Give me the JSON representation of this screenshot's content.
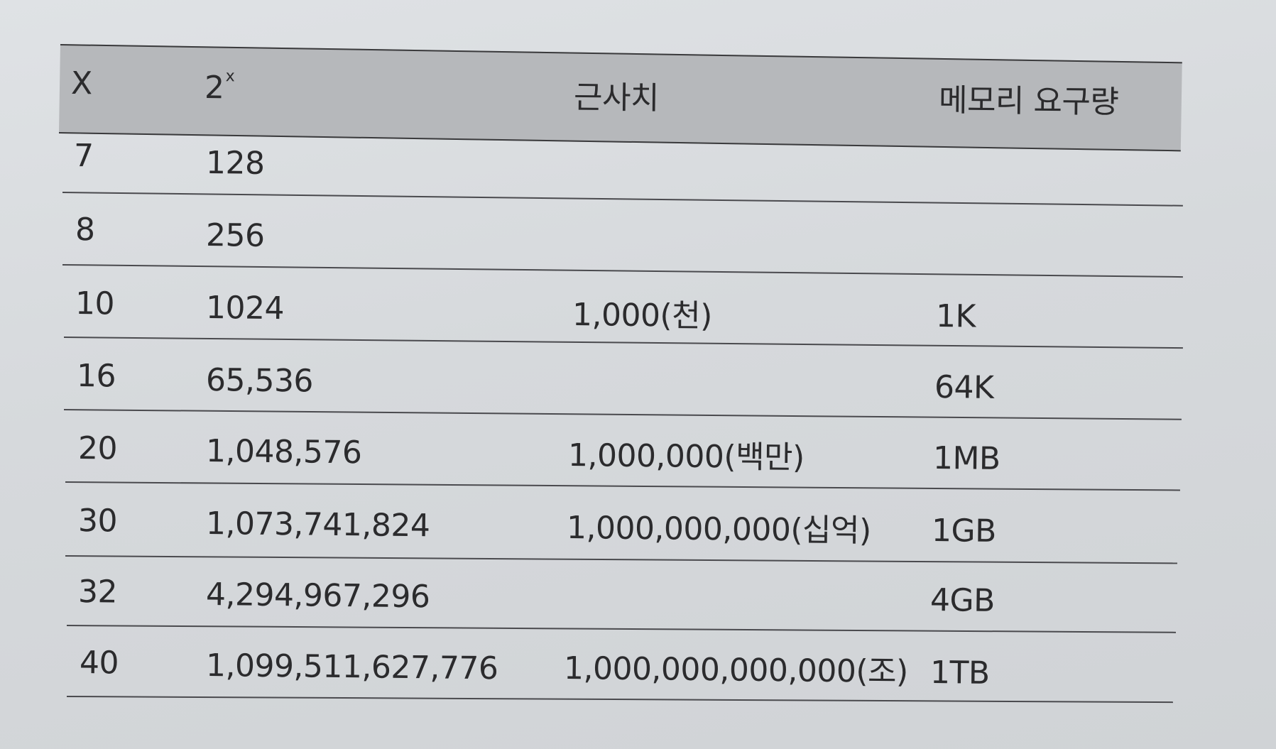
{
  "table": {
    "headers": {
      "x": "X",
      "pow_base": "2",
      "pow_exp": "x",
      "approx": "근사치",
      "memory": "메모리 요구량"
    },
    "rows": [
      {
        "x": "7",
        "pow": "128",
        "approx": "",
        "memory": ""
      },
      {
        "x": "8",
        "pow": "256",
        "approx": "",
        "memory": ""
      },
      {
        "x": "10",
        "pow": "1024",
        "approx": "1,000(천)",
        "memory": "1K"
      },
      {
        "x": "16",
        "pow": "65,536",
        "approx": "",
        "memory": "64K"
      },
      {
        "x": "20",
        "pow": "1,048,576",
        "approx": "1,000,000(백만)",
        "memory": "1MB"
      },
      {
        "x": "30",
        "pow": "1,073,741,824",
        "approx": "1,000,000,000(십억)",
        "memory": "1GB"
      },
      {
        "x": "32",
        "pow": "4,294,967,296",
        "approx": "",
        "memory": "4GB"
      },
      {
        "x": "40",
        "pow": "1,099,511,627,776",
        "approx": "1,000,000,000,000(조)",
        "memory": "1TB"
      }
    ]
  }
}
